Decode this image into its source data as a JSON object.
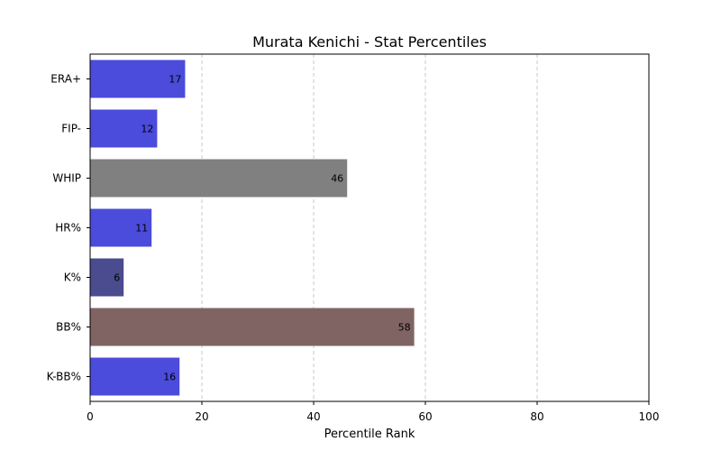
{
  "chart_data": {
    "type": "bar",
    "orientation": "horizontal",
    "title": "Murata Kenichi - Stat Percentiles",
    "xlabel": "Percentile Rank",
    "ylabel": "",
    "xlim": [
      0,
      100
    ],
    "xticks": [
      0,
      20,
      40,
      60,
      80,
      100
    ],
    "grid": "x-dashed",
    "categories": [
      "ERA+",
      "FIP-",
      "WHIP",
      "HR%",
      "K%",
      "BB%",
      "K-BB%"
    ],
    "values": [
      17,
      12,
      46,
      11,
      6,
      58,
      16
    ],
    "colors": [
      "#4b4bdc",
      "#4b4bdc",
      "#808080",
      "#4b4bdc",
      "#4b4b8f",
      "#806464",
      "#4b4bdc"
    ]
  }
}
